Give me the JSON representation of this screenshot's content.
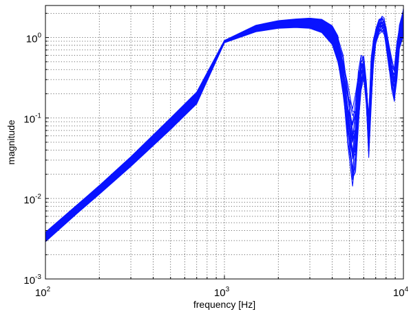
{
  "chart_data": {
    "type": "line",
    "title": "",
    "xlabel": "frequency [Hz]",
    "ylabel": "magnitude",
    "xscale": "log",
    "yscale": "log",
    "xlim": [
      100,
      10000
    ],
    "ylim": [
      0.001,
      2.5
    ],
    "grid": "on",
    "legend": "none",
    "line_color": "#0a14ff",
    "x_ticks": [
      {
        "base": "10",
        "exp": "2",
        "value": 100
      },
      {
        "base": "10",
        "exp": "3",
        "value": 1000
      },
      {
        "base": "10",
        "exp": "4",
        "value": 10000
      }
    ],
    "y_ticks": [
      {
        "base": "10",
        "exp": "-3",
        "value": 0.001
      },
      {
        "base": "10",
        "exp": "-2",
        "value": 0.01
      },
      {
        "base": "10",
        "exp": "-1",
        "value": 0.1
      },
      {
        "base": "10",
        "exp": "0",
        "value": 1
      }
    ],
    "envelope": {
      "x": [
        100,
        150,
        200,
        300,
        500,
        700,
        1000,
        1500,
        2000,
        2500,
        3000,
        3500,
        4000,
        4300,
        4600,
        4900,
        5200,
        5400,
        5600,
        5800,
        6000,
        6200,
        6400,
        6600,
        6800,
        7000,
        7300,
        7600,
        7800,
        8000,
        8300,
        8600,
        8900,
        9200,
        9500,
        10000
      ],
      "upper": [
        0.0038,
        0.0083,
        0.0145,
        0.033,
        0.1,
        0.21,
        0.92,
        1.42,
        1.62,
        1.7,
        1.74,
        1.68,
        1.4,
        1.05,
        0.65,
        0.3,
        0.15,
        0.2,
        0.42,
        0.62,
        0.62,
        0.3,
        0.12,
        0.6,
        0.95,
        1.3,
        1.7,
        1.9,
        1.8,
        1.4,
        0.85,
        0.55,
        0.45,
        0.9,
        1.5,
        2.3
      ],
      "lower": [
        0.0029,
        0.0065,
        0.0113,
        0.025,
        0.072,
        0.15,
        0.86,
        1.18,
        1.3,
        1.33,
        1.3,
        1.15,
        0.82,
        0.5,
        0.18,
        0.04,
        0.012,
        0.02,
        0.07,
        0.22,
        0.3,
        0.14,
        0.03,
        0.12,
        0.45,
        0.8,
        1.1,
        1.15,
        1.05,
        0.75,
        0.4,
        0.22,
        0.15,
        0.3,
        0.7,
        1.05
      ]
    },
    "curve_count": 30
  }
}
